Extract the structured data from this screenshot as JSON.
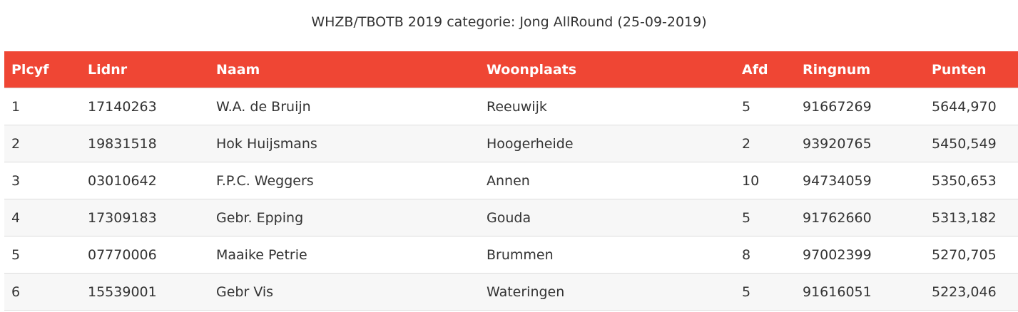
{
  "title": "WHZB/TBOTB 2019 categorie: Jong AllRound (25-09-2019)",
  "table": {
    "header": [
      "Plcyf",
      "Lidnr",
      "Naam",
      "Woonplaats",
      "Afd",
      "Ringnum",
      "Punten"
    ],
    "rows": [
      [
        "1",
        "17140263",
        "W.A. de Bruijn",
        "Reeuwijk",
        "5",
        "91667269",
        "5644,970"
      ],
      [
        "2",
        "19831518",
        "Hok Huijsmans",
        "Hoogerheide",
        "2",
        "93920765",
        "5450,549"
      ],
      [
        "3",
        "03010642",
        "F.P.C. Weggers",
        "Annen",
        "10",
        "94734059",
        "5350,653"
      ],
      [
        "4",
        "17309183",
        "Gebr. Epping",
        "Gouda",
        "5",
        "91762660",
        "5313,182"
      ],
      [
        "5",
        "07770006",
        "Maaike Petrie",
        "Brummen",
        "8",
        "97002399",
        "5270,705"
      ],
      [
        "6",
        "15539001",
        "Gebr Vis",
        "Wateringen",
        "5",
        "91616051",
        "5223,046"
      ]
    ]
  }
}
